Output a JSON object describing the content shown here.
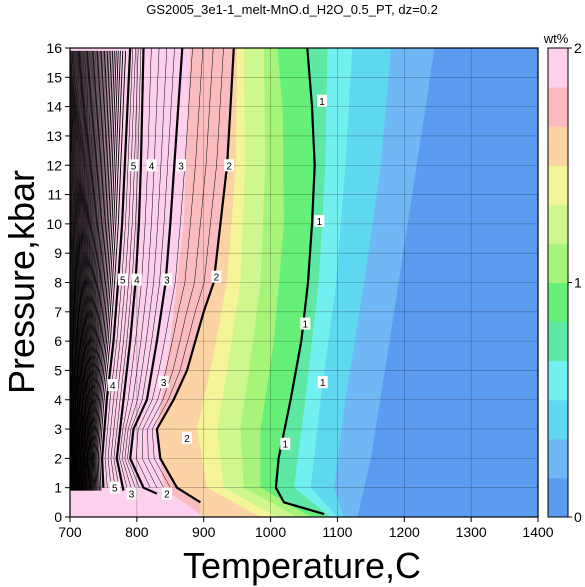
{
  "chart_data": {
    "type": "contour",
    "title": "GS2005_3e1-1_melt-MnO.d_H2O_0.5_PT, dz=0.2",
    "xlabel": "Temperature,C",
    "ylabel": "Pressure,kbar",
    "xlim": [
      700,
      1400
    ],
    "ylim": [
      0,
      16
    ],
    "xticks": [
      700,
      800,
      900,
      1000,
      1100,
      1200,
      1300,
      1400
    ],
    "yticks": [
      0,
      1,
      2,
      3,
      4,
      5,
      6,
      7,
      8,
      9,
      10,
      11,
      12,
      13,
      14,
      15,
      16
    ],
    "grid": true,
    "colorbar": {
      "label": "wt%",
      "range": [
        0,
        2
      ],
      "ticks": [
        0,
        1,
        2
      ],
      "colors": [
        "#5b9bf0",
        "#6fb8f5",
        "#5fd8f0",
        "#72f0f0",
        "#5ee8a6",
        "#66f07a",
        "#a7f47a",
        "#cff790",
        "#f4f596",
        "#fbd3a4",
        "#fbbcbf",
        "#fdd0ee"
      ]
    },
    "contours": [
      {
        "level": 1,
        "T_at_P": [
          [
            0.1,
            1080
          ],
          [
            0.5,
            1020
          ],
          [
            1,
            1008
          ],
          [
            2,
            1012
          ],
          [
            4,
            1030
          ],
          [
            6,
            1046
          ],
          [
            8,
            1056
          ],
          [
            10,
            1062
          ],
          [
            12,
            1066
          ],
          [
            14,
            1062
          ],
          [
            16,
            1055
          ]
        ]
      },
      {
        "level": 2,
        "T_at_P": [
          [
            0.5,
            895
          ],
          [
            1,
            860
          ],
          [
            2,
            835
          ],
          [
            3,
            830
          ],
          [
            4,
            855
          ],
          [
            5,
            875
          ],
          [
            7,
            900
          ],
          [
            8,
            915
          ],
          [
            10,
            925
          ],
          [
            12,
            935
          ],
          [
            14,
            940
          ],
          [
            16,
            945
          ]
        ]
      },
      {
        "level": 3,
        "T_at_P": [
          [
            0.8,
            830
          ],
          [
            1,
            810
          ],
          [
            2,
            790
          ],
          [
            3,
            795
          ],
          [
            4,
            815
          ],
          [
            6,
            830
          ],
          [
            8,
            843
          ],
          [
            10,
            850
          ],
          [
            12,
            856
          ],
          [
            14,
            862
          ],
          [
            16,
            868
          ]
        ]
      },
      {
        "level": 4,
        "T_at_P": [
          [
            0.9,
            780
          ],
          [
            2,
            770
          ],
          [
            4,
            780
          ],
          [
            6,
            790
          ],
          [
            8,
            798
          ],
          [
            10,
            803
          ],
          [
            12,
            806
          ],
          [
            14,
            808
          ],
          [
            16,
            810
          ]
        ]
      },
      {
        "level": 5,
        "T_at_P": [
          [
            1,
            750
          ],
          [
            2,
            748
          ],
          [
            4,
            755
          ],
          [
            6,
            765
          ],
          [
            8,
            772
          ],
          [
            10,
            778
          ],
          [
            12,
            782
          ],
          [
            14,
            786
          ],
          [
            16,
            790
          ]
        ]
      }
    ],
    "contour_labels": [
      {
        "text": "1",
        "T": 1077,
        "P": 14.2
      },
      {
        "text": "1",
        "T": 1073,
        "P": 10.1
      },
      {
        "text": "1",
        "T": 1052,
        "P": 6.6
      },
      {
        "text": "1",
        "T": 1022,
        "P": 2.5
      },
      {
        "text": "1",
        "T": 1078,
        "P": 4.6
      },
      {
        "text": "2",
        "T": 938,
        "P": 12.0
      },
      {
        "text": "2",
        "T": 919,
        "P": 8.2
      },
      {
        "text": "2",
        "T": 875,
        "P": 2.7
      },
      {
        "text": "2",
        "T": 845,
        "P": 0.8
      },
      {
        "text": "3",
        "T": 866,
        "P": 12.0
      },
      {
        "text": "3",
        "T": 845,
        "P": 8.1
      },
      {
        "text": "3",
        "T": 840,
        "P": 4.6
      },
      {
        "text": "3",
        "T": 792,
        "P": 0.8
      },
      {
        "text": "4",
        "T": 822,
        "P": 12.0
      },
      {
        "text": "4",
        "T": 800,
        "P": 8.1
      },
      {
        "text": "4",
        "T": 764,
        "P": 4.5
      },
      {
        "text": "5",
        "T": 795,
        "P": 12.0
      },
      {
        "text": "5",
        "T": 779,
        "P": 8.1
      },
      {
        "text": "5",
        "T": 767,
        "P": 1.0
      }
    ]
  }
}
